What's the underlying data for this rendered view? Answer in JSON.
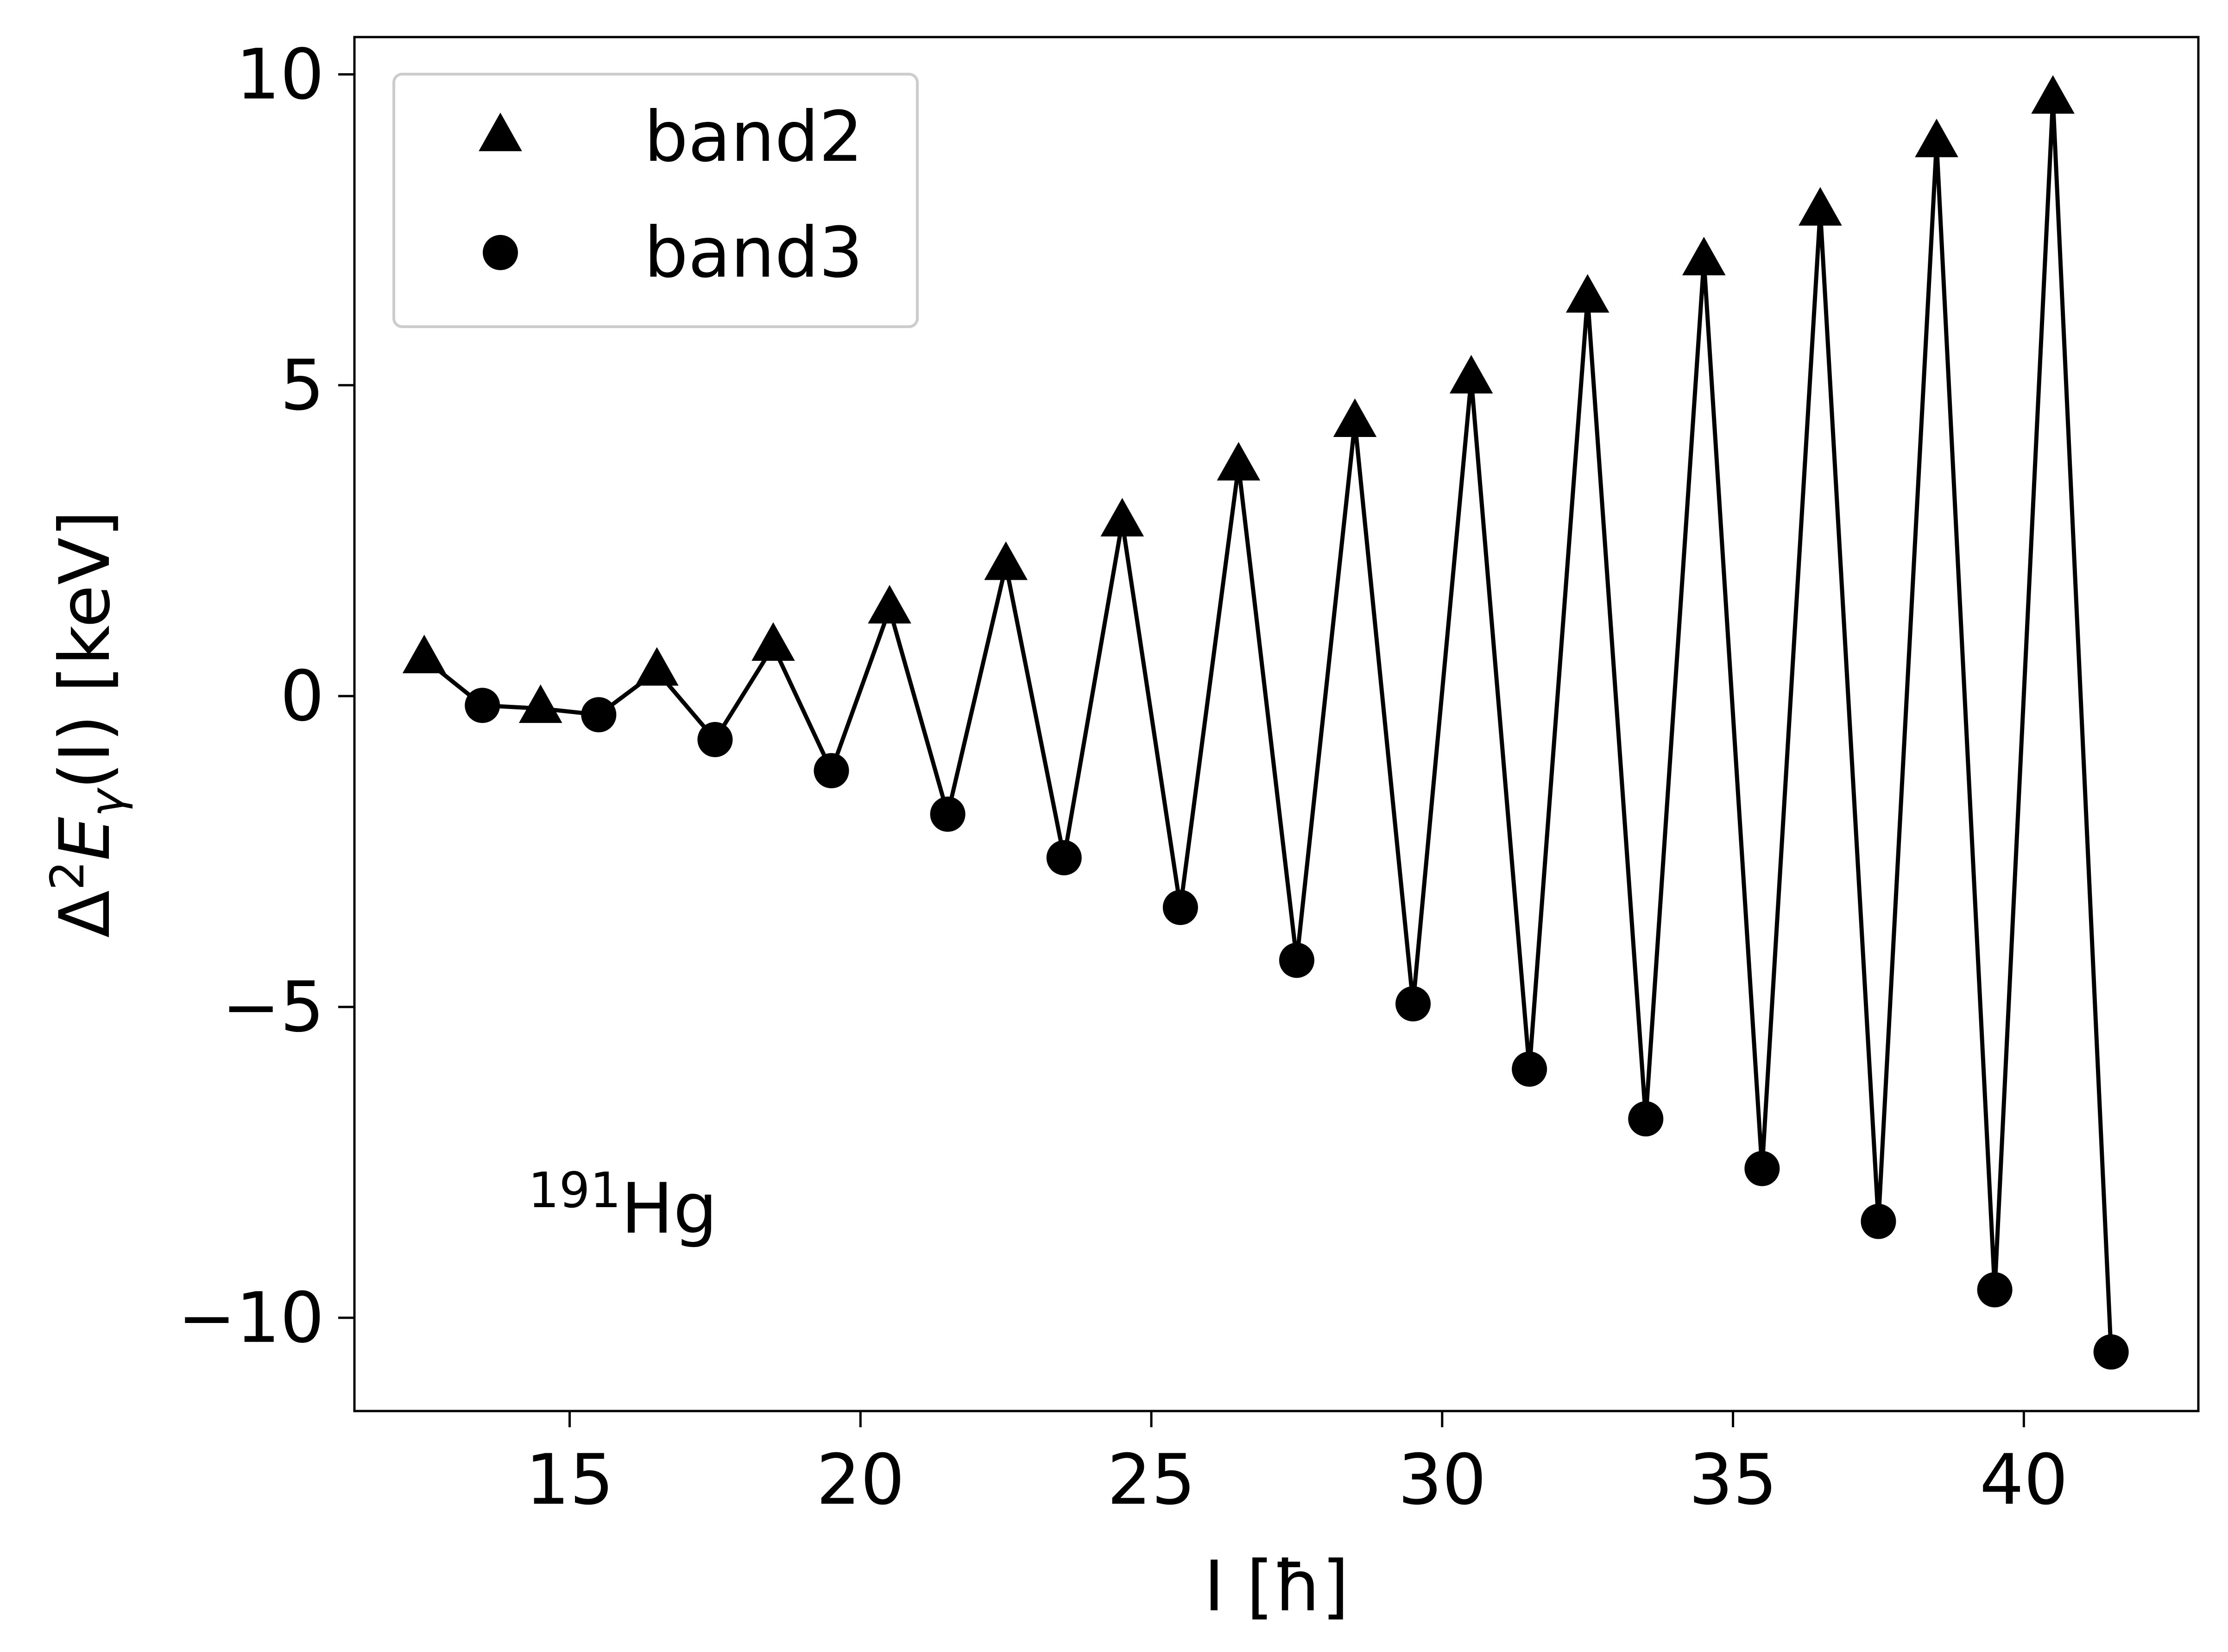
{
  "chart_data": {
    "type": "line",
    "xlabel": "I [ħ]",
    "ylabel": {
      "prefix": "Δ",
      "sup": "2",
      "main": "E",
      "sub": "γ",
      "suffix": "(I) [keV]"
    },
    "xlim": [
      11.3,
      43.0
    ],
    "ylim": [
      -11.5,
      10.6
    ],
    "xticks": [
      {
        "value": 15,
        "label": "15"
      },
      {
        "value": 20,
        "label": "20"
      },
      {
        "value": 25,
        "label": "25"
      },
      {
        "value": 30,
        "label": "30"
      },
      {
        "value": 35,
        "label": "35"
      },
      {
        "value": 40,
        "label": "40"
      }
    ],
    "yticks": [
      {
        "value": 10,
        "label": "10"
      },
      {
        "value": 5,
        "label": "5"
      },
      {
        "value": 0,
        "label": "0"
      },
      {
        "value": -5,
        "label": "−5"
      },
      {
        "value": -10,
        "label": "−10"
      }
    ],
    "grid": false,
    "legend_position": "top-left",
    "annotation": {
      "sup": "191",
      "text": "Hg"
    },
    "series": [
      {
        "name": "band2",
        "marker": "triangle",
        "color": "#000000",
        "x": [
          12.5,
          14.5,
          16.5,
          18.5,
          20.5,
          22.5,
          24.5,
          26.5,
          28.5,
          30.5,
          32.5,
          34.5,
          36.5,
          38.5,
          40.5
        ],
        "y": [
          0.6,
          -0.2,
          0.4,
          0.8,
          1.4,
          2.1,
          2.8,
          3.7,
          4.4,
          5.1,
          6.4,
          7.0,
          7.8,
          8.9,
          9.6
        ]
      },
      {
        "name": "band3",
        "marker": "circle",
        "color": "#000000",
        "x": [
          13.5,
          15.5,
          17.5,
          19.5,
          21.5,
          23.5,
          25.5,
          27.5,
          29.5,
          31.5,
          33.5,
          35.5,
          37.5,
          39.5,
          41.5
        ],
        "y": [
          -0.15,
          -0.3,
          -0.7,
          -1.2,
          -1.9,
          -2.6,
          -3.4,
          -4.25,
          -4.95,
          -6.0,
          -6.8,
          -7.6,
          -8.45,
          -9.55,
          -10.55
        ]
      }
    ]
  }
}
